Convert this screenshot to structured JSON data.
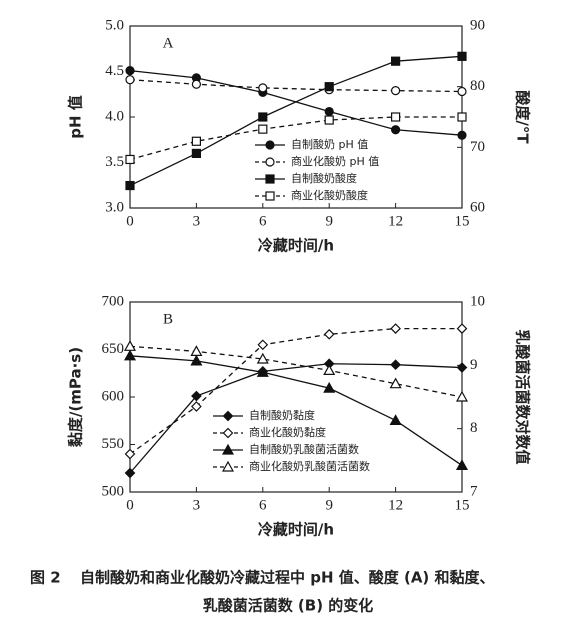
{
  "caption": {
    "label": "图 2",
    "lines": [
      "自制酸奶和商业化酸奶冷藏过程中 pH 值、酸度 (A) 和黏度、",
      "乳酸菌活菌数 (B) 的变化"
    ]
  },
  "chart_data": [
    {
      "type": "line",
      "annotation": "A",
      "x_label": "冷藏时间/h",
      "y_label": "pH 值",
      "y2_label": "酸度/°T",
      "x": [
        0,
        3,
        6,
        9,
        12,
        15
      ],
      "xlim": [
        0,
        15
      ],
      "xticks": [
        0,
        3,
        6,
        9,
        12,
        15
      ],
      "ylim": [
        3,
        5
      ],
      "yticks": [
        {
          "value": 3,
          "label": "3.0"
        },
        {
          "value": 3.5,
          "label": "3.5"
        },
        {
          "value": 4,
          "label": "4.0"
        },
        {
          "value": 4.5,
          "label": "4.5"
        },
        {
          "value": 5,
          "label": "5.0"
        }
      ],
      "y2lim": [
        60,
        90
      ],
      "y2ticks": [
        60,
        70,
        80,
        90
      ],
      "series": [
        {
          "name": "自制酸奶 pH 值",
          "color": "#111",
          "marker": "circle",
          "filled": true,
          "dashed": false,
          "values": [
            4.51,
            4.43,
            4.27,
            4.06,
            3.86,
            3.8
          ]
        },
        {
          "name": "商业化酸奶 pH 值",
          "color": "#111",
          "marker": "circle",
          "filled": false,
          "dashed": true,
          "values": [
            4.41,
            4.36,
            4.32,
            4.3,
            4.29,
            4.28
          ]
        },
        {
          "name": "自制酸奶酸度",
          "color": "#111",
          "marker": "square",
          "filled": true,
          "dashed": false,
          "axis": "y2",
          "values": [
            63.7,
            69,
            75,
            80,
            84.2,
            85
          ]
        },
        {
          "name": "商业化酸奶酸度",
          "color": "#111",
          "marker": "square",
          "filled": false,
          "dashed": true,
          "axis": "y2",
          "values": [
            68,
            71,
            73,
            74.5,
            75,
            75
          ]
        }
      ]
    },
    {
      "type": "line",
      "annotation": "B",
      "x_label": "冷藏时间/h",
      "y_label": "黏度/(mPa·s)",
      "y2_label": "乳酸菌活菌数对数值",
      "x": [
        0,
        3,
        6,
        9,
        12,
        15
      ],
      "xlim": [
        0,
        15
      ],
      "xticks": [
        0,
        3,
        6,
        9,
        12,
        15
      ],
      "ylim": [
        500,
        700
      ],
      "yticks": [
        500,
        550,
        600,
        650,
        700
      ],
      "y2lim": [
        7,
        10
      ],
      "y2ticks": [
        7,
        8,
        9,
        10
      ],
      "series": [
        {
          "name": "自制酸奶黏度",
          "color": "#111",
          "marker": "diamond",
          "filled": true,
          "dashed": false,
          "values": [
            520,
            601,
            627,
            635,
            634,
            631
          ]
        },
        {
          "name": "商业化酸奶黏度",
          "color": "#111",
          "marker": "diamond",
          "filled": false,
          "dashed": true,
          "values": [
            540,
            590,
            655,
            666,
            672,
            672
          ]
        },
        {
          "name": "自制酸奶乳酸菌活菌数",
          "color": "#111",
          "marker": "triangle",
          "filled": true,
          "dashed": false,
          "axis": "y2",
          "values": [
            9.15,
            9.07,
            8.89,
            8.64,
            8.13,
            7.42
          ]
        },
        {
          "name": "商业化酸奶乳酸菌活菌数",
          "color": "#111",
          "marker": "triangle",
          "filled": false,
          "dashed": true,
          "axis": "y2",
          "values": [
            9.3,
            9.22,
            9.1,
            8.92,
            8.71,
            8.5
          ]
        }
      ]
    }
  ]
}
